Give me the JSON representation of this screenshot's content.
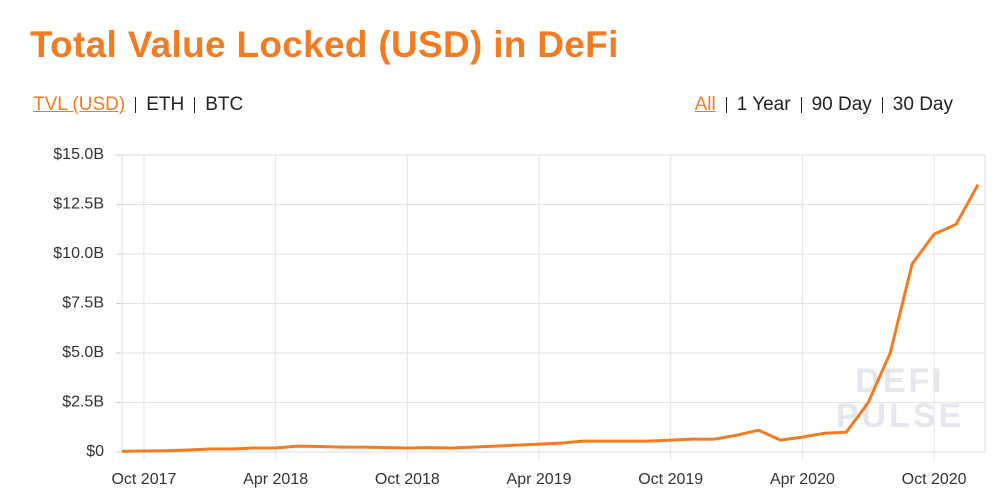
{
  "controls": {
    "left": [
      {
        "label": "TVL (USD)",
        "active": true
      },
      {
        "label": "ETH",
        "active": false
      },
      {
        "label": "BTC",
        "active": false
      }
    ],
    "right": [
      {
        "label": "All",
        "active": true
      },
      {
        "label": "1 Year",
        "active": false
      },
      {
        "label": "90 Day",
        "active": false
      },
      {
        "label": "30 Day",
        "active": false
      }
    ]
  },
  "chart_data": {
    "type": "line",
    "title": "Total Value Locked (USD) in DeFi",
    "watermark": [
      "DEFI",
      "PULSE"
    ],
    "x": [
      "2017-09",
      "2017-10",
      "2017-11",
      "2017-12",
      "2018-01",
      "2018-02",
      "2018-03",
      "2018-04",
      "2018-05",
      "2018-06",
      "2018-07",
      "2018-08",
      "2018-09",
      "2018-10",
      "2018-11",
      "2018-12",
      "2019-01",
      "2019-02",
      "2019-03",
      "2019-04",
      "2019-05",
      "2019-06",
      "2019-07",
      "2019-08",
      "2019-09",
      "2019-10",
      "2019-11",
      "2019-12",
      "2020-01",
      "2020-02",
      "2020-03",
      "2020-04",
      "2020-05",
      "2020-06",
      "2020-07",
      "2020-08",
      "2020-09",
      "2020-10",
      "2020-11",
      "2020-12"
    ],
    "series": [
      {
        "name": "TVL (USD)",
        "color": "#f37b21",
        "values": [
          30000000,
          50000000,
          60000000,
          100000000,
          150000000,
          150000000,
          200000000,
          200000000,
          300000000,
          280000000,
          250000000,
          250000000,
          220000000,
          200000000,
          220000000,
          200000000,
          250000000,
          300000000,
          350000000,
          400000000,
          450000000,
          550000000,
          550000000,
          550000000,
          550000000,
          600000000,
          650000000,
          650000000,
          850000000,
          1100000000,
          600000000,
          750000000,
          950000000,
          1000000000,
          2500000000,
          5000000000,
          9500000000,
          11000000000,
          11500000000,
          13500000000
        ]
      }
    ],
    "xlim": [
      "2017-09",
      "2020-12"
    ],
    "xticks": [
      {
        "value": "2017-10",
        "label": "Oct 2017"
      },
      {
        "value": "2018-04",
        "label": "Apr 2018"
      },
      {
        "value": "2018-10",
        "label": "Oct 2018"
      },
      {
        "value": "2019-04",
        "label": "Apr 2019"
      },
      {
        "value": "2019-10",
        "label": "Oct 2019"
      },
      {
        "value": "2020-04",
        "label": "Apr 2020"
      },
      {
        "value": "2020-10",
        "label": "Oct 2020"
      }
    ],
    "ylim": [
      0,
      15000000000
    ],
    "yticks": [
      {
        "value": 0,
        "label": "$0"
      },
      {
        "value": 2500000000,
        "label": "$2.5B"
      },
      {
        "value": 5000000000,
        "label": "$5.0B"
      },
      {
        "value": 7500000000,
        "label": "$7.5B"
      },
      {
        "value": 10000000000,
        "label": "$10.0B"
      },
      {
        "value": 12500000000,
        "label": "$12.5B"
      },
      {
        "value": 15000000000,
        "label": "$15.0B"
      }
    ],
    "grid": true
  }
}
